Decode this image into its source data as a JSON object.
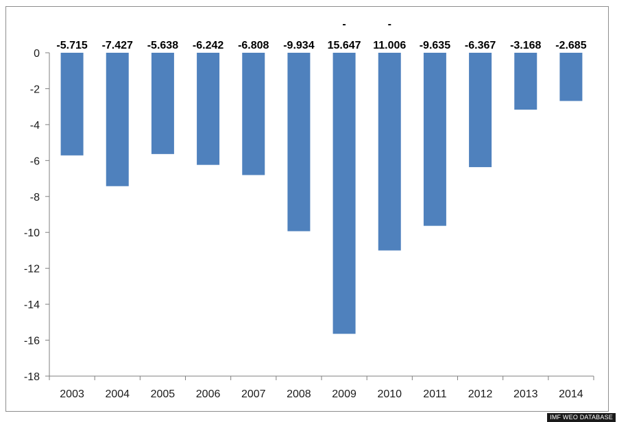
{
  "chart_data": {
    "type": "bar",
    "categories": [
      "2003",
      "2004",
      "2005",
      "2006",
      "2007",
      "2008",
      "2009",
      "2010",
      "2011",
      "2012",
      "2013",
      "2014"
    ],
    "values": [
      -5.715,
      -7.427,
      -5.638,
      -6.242,
      -6.808,
      -9.934,
      -15.647,
      -11.006,
      -9.635,
      -6.367,
      -3.168,
      -2.685
    ],
    "data_labels": [
      "-5.715",
      "-7.427",
      "-5.638",
      "-6.242",
      "-6.808",
      "-9.934",
      "15.647",
      "11.006",
      "-9.635",
      "-6.367",
      "-3.168",
      "-2.685"
    ],
    "data_label_prefixes": [
      "",
      "",
      "",
      "",
      "",
      "",
      "-",
      "-",
      "",
      "",
      "",
      ""
    ],
    "yticks": [
      0,
      -2,
      -4,
      -6,
      -8,
      -10,
      -12,
      -14,
      -16,
      -18
    ],
    "ylim": [
      -18,
      0
    ],
    "bar_color": "#4f81bd",
    "grid": false,
    "legend": "none",
    "title": "",
    "xlabel": "",
    "ylabel": ""
  },
  "source_credit": "IMF WEO DATABASE"
}
